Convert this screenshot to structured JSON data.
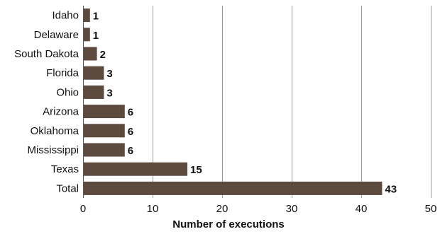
{
  "chart_data": {
    "type": "bar",
    "orientation": "horizontal",
    "title": "",
    "xlabel": "Number of executions",
    "ylabel": "",
    "categories": [
      "Idaho",
      "Delaware",
      "South Dakota",
      "Florida",
      "Ohio",
      "Arizona",
      "Oklahoma",
      "Mississippi",
      "Texas",
      "Total"
    ],
    "values": [
      1,
      1,
      2,
      3,
      3,
      6,
      6,
      6,
      15,
      43
    ],
    "xlim": [
      0,
      50
    ],
    "xticks": [
      0,
      10,
      20,
      30,
      40,
      50
    ],
    "grid": "vertical",
    "legend": "none",
    "data_labels": true,
    "bar_color": "#5c4a3f"
  }
}
